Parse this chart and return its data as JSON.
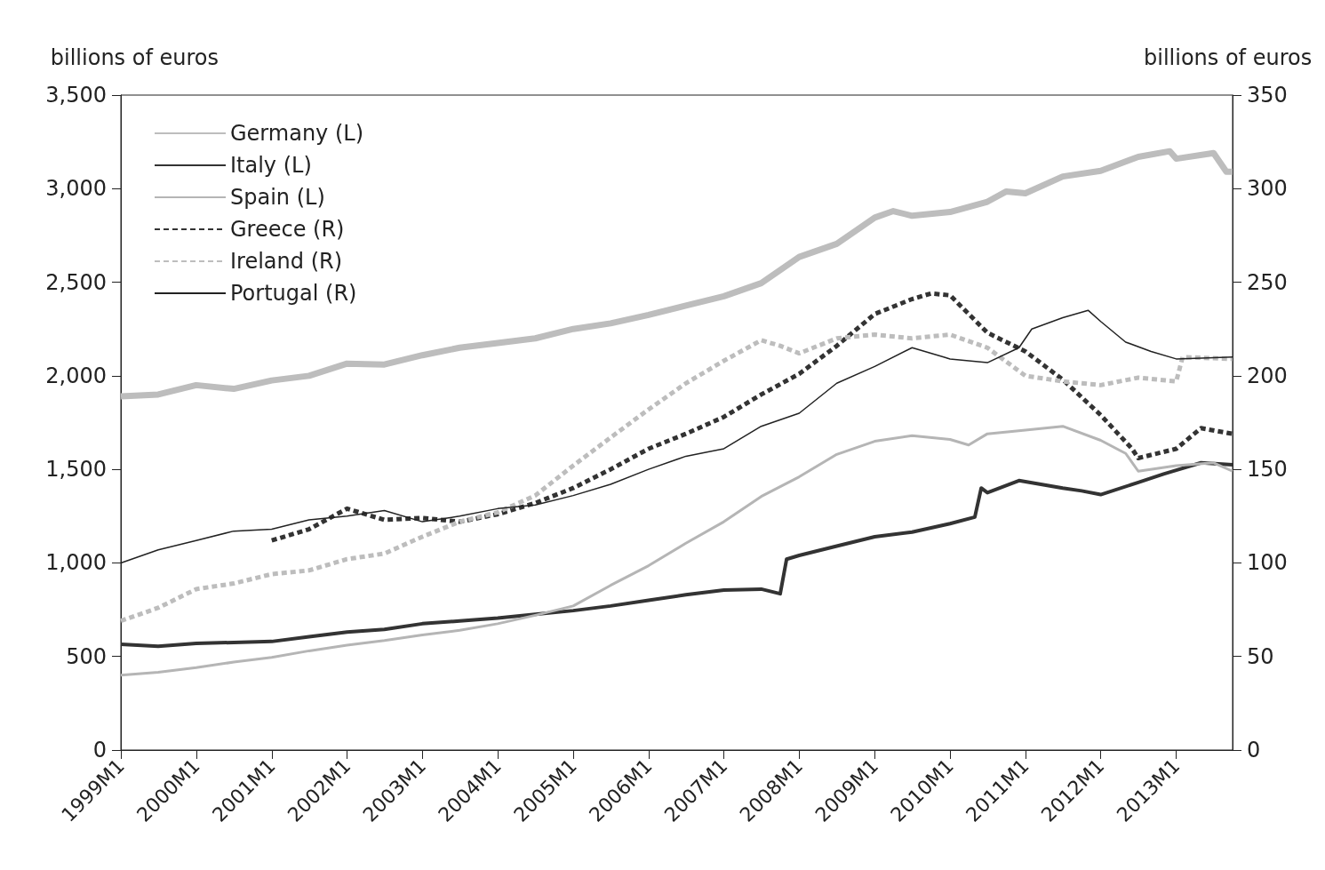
{
  "chart_data": {
    "type": "line",
    "ylabel": "billions of euros",
    "y2label": "billions of euros",
    "xlim": [
      "1999-01",
      "2013-10"
    ],
    "xticks": [
      {
        "value": "1999-01",
        "label": "1999M1"
      },
      {
        "value": "2000-01",
        "label": "2000M1"
      },
      {
        "value": "2001-01",
        "label": "2001M1"
      },
      {
        "value": "2002-01",
        "label": "2002M1"
      },
      {
        "value": "2003-01",
        "label": "2003M1"
      },
      {
        "value": "2004-01",
        "label": "2004M1"
      },
      {
        "value": "2005-01",
        "label": "2005M1"
      },
      {
        "value": "2006-01",
        "label": "2006M1"
      },
      {
        "value": "2007-01",
        "label": "2007M1"
      },
      {
        "value": "2008-01",
        "label": "2008M1"
      },
      {
        "value": "2009-01",
        "label": "2009M1"
      },
      {
        "value": "2010-01",
        "label": "2010M1"
      },
      {
        "value": "2011-01",
        "label": "2011M1"
      },
      {
        "value": "2012-01",
        "label": "2012M1"
      },
      {
        "value": "2013-01",
        "label": "2013M1"
      }
    ],
    "ylim": [
      0,
      3500
    ],
    "yticks": [
      0,
      {
        "value": 500,
        "label": "500"
      },
      {
        "value": 1000,
        "label": "1,000"
      },
      {
        "value": 1500,
        "label": "1,500"
      },
      {
        "value": 2000,
        "label": "2,000"
      },
      {
        "value": 2500,
        "label": "2,500"
      },
      {
        "value": 3000,
        "label": "3,000"
      },
      {
        "value": 3500,
        "label": "3,500"
      }
    ],
    "y2lim": [
      0,
      350
    ],
    "y2ticks": [
      0,
      50,
      100,
      150,
      200,
      250,
      300,
      350
    ],
    "grid": false,
    "legend": "top left",
    "marker": "none",
    "series": [
      {
        "name": "Germany (L)",
        "color": "#bdbdbd",
        "line_style": "solid",
        "x": [
          "1999-01",
          "1999-07",
          "2000-01",
          "2000-07",
          "2001-01",
          "2001-07",
          "2002-01",
          "2002-07",
          "2003-01",
          "2003-07",
          "2004-01",
          "2004-07",
          "2005-01",
          "2005-07",
          "2006-01",
          "2006-07",
          "2007-01",
          "2007-07",
          "2008-01",
          "2008-07",
          "2009-01",
          "2009-04",
          "2009-07",
          "2010-01",
          "2010-07",
          "2010-10",
          "2011-01",
          "2011-07",
          "2012-01",
          "2012-07",
          "2012-12",
          "2013-01",
          "2013-07",
          "2013-08",
          "2013-09",
          "2013-10"
        ],
        "values": [
          1890,
          1900,
          1950,
          1930,
          1975,
          2000,
          2065,
          2060,
          2110,
          2150,
          2175,
          2200,
          2250,
          2280,
          2325,
          2375,
          2425,
          2495,
          2635,
          2705,
          2845,
          2880,
          2855,
          2875,
          2930,
          2985,
          2975,
          3065,
          3095,
          3170,
          3200,
          3160,
          3190,
          3140,
          3090,
          3090
        ]
      },
      {
        "name": "Italy (L)",
        "color": "#333333",
        "line_style": "solid",
        "x": [
          "1999-01",
          "1999-07",
          "2000-01",
          "2000-07",
          "2001-01",
          "2001-07",
          "2002-01",
          "2002-07",
          "2003-01",
          "2003-07",
          "2004-01",
          "2004-07",
          "2005-01",
          "2005-07",
          "2006-01",
          "2006-07",
          "2007-01",
          "2007-07",
          "2007-10",
          "2007-11",
          "2008-01",
          "2008-07",
          "2009-01",
          "2009-07",
          "2010-01",
          "2010-05",
          "2010-06",
          "2010-07",
          "2010-12",
          "2011-07",
          "2011-10",
          "2012-01",
          "2012-07",
          "2012-11",
          "2013-01",
          "2013-05",
          "2013-10"
        ],
        "values": [
          565,
          555,
          570,
          575,
          580,
          605,
          630,
          645,
          675,
          690,
          705,
          725,
          745,
          770,
          800,
          830,
          855,
          860,
          835,
          1020,
          1040,
          1090,
          1140,
          1165,
          1210,
          1245,
          1400,
          1375,
          1440,
          1400,
          1385,
          1365,
          1430,
          1475,
          1495,
          1535,
          1525
        ]
      },
      {
        "name": "Spain (L)",
        "color": "#b5b5b5",
        "line_style": "solid",
        "x": [
          "1999-01",
          "1999-07",
          "2000-01",
          "2000-07",
          "2001-01",
          "2001-07",
          "2002-01",
          "2002-07",
          "2003-01",
          "2003-07",
          "2004-01",
          "2004-07",
          "2005-01",
          "2005-07",
          "2006-01",
          "2006-07",
          "2007-01",
          "2007-07",
          "2008-01",
          "2008-07",
          "2009-01",
          "2009-07",
          "2010-01",
          "2010-04",
          "2010-07",
          "2011-01",
          "2011-07",
          "2012-01",
          "2012-05",
          "2012-07",
          "2013-01",
          "2013-07",
          "2013-10"
        ],
        "values": [
          400,
          415,
          440,
          470,
          495,
          530,
          560,
          585,
          615,
          640,
          675,
          720,
          770,
          880,
          985,
          1105,
          1220,
          1355,
          1460,
          1580,
          1650,
          1680,
          1660,
          1630,
          1690,
          1710,
          1730,
          1655,
          1585,
          1490,
          1520,
          1535,
          1490
        ]
      },
      {
        "name": "Greece (R)",
        "color": "#333333",
        "line_style": "dashed",
        "axis": "y2",
        "x": [
          "2001-01",
          "2001-07",
          "2002-01",
          "2002-07",
          "2003-01",
          "2003-07",
          "2004-01",
          "2004-07",
          "2005-01",
          "2005-07",
          "2006-01",
          "2006-07",
          "2007-01",
          "2007-07",
          "2008-01",
          "2008-07",
          "2009-01",
          "2009-07",
          "2009-10",
          "2010-01",
          "2010-07",
          "2011-01",
          "2011-07",
          "2012-01",
          "2012-06",
          "2012-07",
          "2013-01",
          "2013-05",
          "2013-10"
        ],
        "values": [
          112,
          118,
          129,
          123,
          124,
          122,
          126,
          132,
          140,
          150,
          161,
          169,
          178,
          190,
          201,
          216,
          233,
          241,
          244,
          243,
          223,
          213,
          198,
          179,
          161,
          156,
          161,
          172,
          169
        ]
      },
      {
        "name": "Ireland (R)",
        "color": "#bdbdbd",
        "line_style": "dashed",
        "axis": "y2",
        "x": [
          "1999-01",
          "1999-07",
          "2000-01",
          "2000-07",
          "2001-01",
          "2001-07",
          "2002-01",
          "2002-07",
          "2003-01",
          "2003-07",
          "2004-01",
          "2004-07",
          "2005-01",
          "2005-07",
          "2006-01",
          "2006-07",
          "2007-01",
          "2007-07",
          "2007-10",
          "2008-01",
          "2008-07",
          "2009-01",
          "2009-07",
          "2010-01",
          "2010-07",
          "2011-01",
          "2011-07",
          "2012-01",
          "2012-07",
          "2013-01",
          "2013-02",
          "2013-10"
        ],
        "values": [
          69,
          76,
          86,
          89,
          94,
          96,
          102,
          105,
          114,
          122,
          127,
          136,
          152,
          167,
          182,
          196,
          208,
          219,
          216,
          212,
          220,
          222,
          220,
          222,
          215,
          200,
          197,
          195,
          199,
          197,
          210,
          209
        ]
      },
      {
        "name": "Portugal (R)",
        "color": "#222222",
        "line_style": "solid",
        "axis": "y2",
        "x": [
          "1999-01",
          "1999-07",
          "2000-01",
          "2000-07",
          "2001-01",
          "2001-07",
          "2002-01",
          "2002-07",
          "2003-01",
          "2003-07",
          "2004-01",
          "2004-07",
          "2005-01",
          "2005-07",
          "2006-01",
          "2006-07",
          "2007-01",
          "2007-07",
          "2008-01",
          "2008-07",
          "2009-01",
          "2009-07",
          "2009-12",
          "2010-01",
          "2010-07",
          "2010-12",
          "2011-02",
          "2011-07",
          "2011-11",
          "2012-01",
          "2012-05",
          "2012-09",
          "2013-01",
          "2013-10"
        ],
        "values": [
          100,
          107,
          112,
          117,
          118,
          123,
          125,
          128,
          122,
          125,
          129,
          131,
          136,
          142,
          150,
          157,
          161,
          173,
          180,
          196,
          205,
          215,
          210,
          209,
          207,
          215,
          225,
          231,
          235,
          229,
          218,
          213,
          209,
          210
        ]
      }
    ]
  }
}
